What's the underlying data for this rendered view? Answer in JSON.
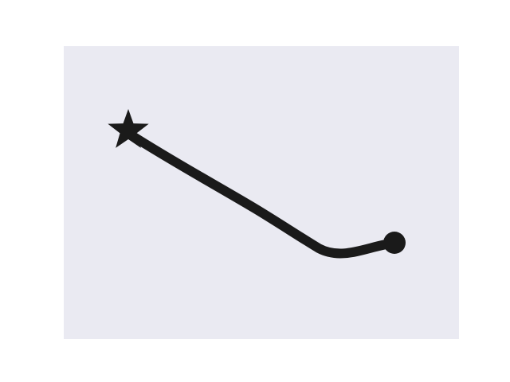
{
  "colors": {
    "page_background": "#ffffff",
    "panel_background": "#eaeaf2",
    "stroke": "#1a1a1a"
  },
  "diagram": {
    "start_marker": "star-icon",
    "end_marker": "circle-dot-icon"
  }
}
